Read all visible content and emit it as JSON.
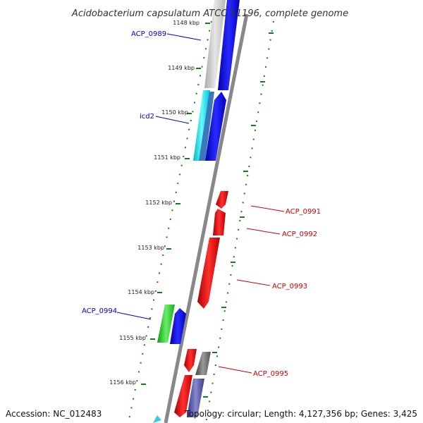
{
  "title": "Acidobacterium capsulatum ATCC 51196, complete genome",
  "footer": {
    "accession": "Accession: NC_012483",
    "topology": "Topology: circular; Length: 4,127,356 bp; Genes: 3,425"
  },
  "ticks": [
    "1148 kbp",
    "1149 kbp",
    "1150 kbp",
    "1151 kbp",
    "1152 kbp",
    "1153 kbp",
    "1154 kbp",
    "1155 kbp",
    "1156 kbp"
  ],
  "gene_labels": [
    {
      "id": "acp-0989",
      "text": "ACP_0989",
      "color": "#0000cc"
    },
    {
      "id": "icd2",
      "text": "icd2",
      "color": "#0000cc"
    },
    {
      "id": "acp-0991",
      "text": "ACP_0991",
      "color": "#cc0000"
    },
    {
      "id": "acp-0992",
      "text": "ACP_0992",
      "color": "#cc0000"
    },
    {
      "id": "acp-0993",
      "text": "ACP_0993",
      "color": "#cc0000"
    },
    {
      "id": "acp-0994",
      "text": "ACP_0994",
      "color": "#0000cc"
    },
    {
      "id": "acp-0995",
      "text": "ACP_0995",
      "color": "#cc0000"
    }
  ],
  "colors": {
    "backbone": "#888888",
    "tick_mark": "#1a7a1a",
    "gene_blue": "#0000ee",
    "gene_red": "#ee0000",
    "gene_cyan": "#00e5ee",
    "gene_green": "#22bb22",
    "gene_gray": "#c0c0c0",
    "gene_darkgray": "#666666",
    "gene_slate": "#4b4b9b"
  }
}
